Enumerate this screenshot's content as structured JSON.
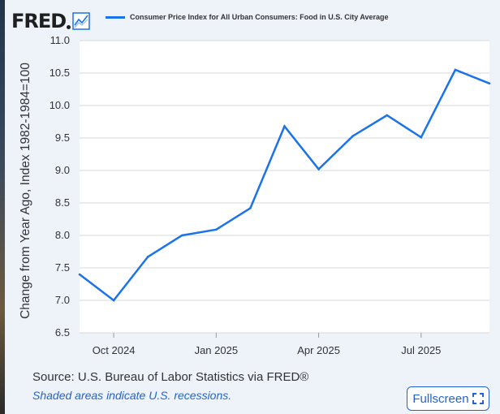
{
  "logo": {
    "text": "FRED",
    "icon": "line-chart-icon"
  },
  "legend": {
    "label": "Consumer Price Index for All Urban Consumers: Food in U.S. City Average",
    "color": "#1a73e8"
  },
  "source": "Source: U.S. Bureau of Labor Statistics via FRED®",
  "recession_note": "Shaded areas indicate U.S. recessions.",
  "fullscreen": {
    "label": "Fullscreen",
    "icon": "expand-icon"
  },
  "chart_data": {
    "type": "line",
    "title": "",
    "ylabel": "Change from Year Ago, Index 1982-1984=100",
    "xlabel": "",
    "ylim": [
      6.5,
      11.0
    ],
    "yticks": [
      "6.5",
      "7.0",
      "7.5",
      "8.0",
      "8.5",
      "9.0",
      "9.5",
      "10.0",
      "10.5",
      "11.0"
    ],
    "xticks": [
      "Oct 2024",
      "Jan 2025",
      "Apr 2025",
      "Jul 2025"
    ],
    "grid": true,
    "legend_position": "top",
    "series": [
      {
        "name": "Consumer Price Index for All Urban Consumers: Food in U.S. City Average",
        "color": "#1a73e8",
        "x": [
          "2024-09",
          "2024-10",
          "2024-11",
          "2024-12",
          "2025-01",
          "2025-02",
          "2025-03",
          "2025-04",
          "2025-05",
          "2025-06",
          "2025-07",
          "2025-08",
          "2025-09"
        ],
        "values": [
          7.4,
          7.0,
          7.67,
          8.0,
          8.09,
          8.42,
          9.68,
          9.02,
          9.53,
          9.85,
          9.51,
          10.55,
          10.34
        ]
      }
    ]
  }
}
